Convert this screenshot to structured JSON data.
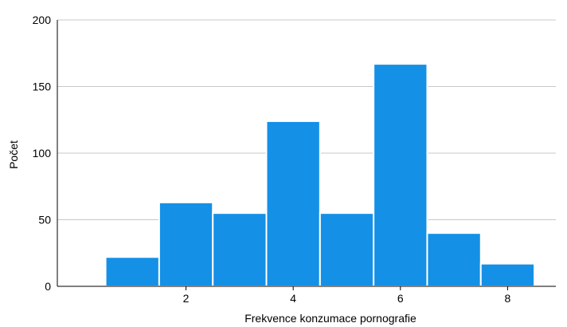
{
  "chart_data": {
    "type": "bar",
    "title": "",
    "xlabel": "Frekvence konzumace pornografie",
    "ylabel": "Počet",
    "bins": [
      {
        "x_start": 0.5,
        "x_end": 1.5,
        "count": 22
      },
      {
        "x_start": 1.5,
        "x_end": 2.5,
        "count": 63
      },
      {
        "x_start": 2.5,
        "x_end": 3.5,
        "count": 55
      },
      {
        "x_start": 3.5,
        "x_end": 4.5,
        "count": 124
      },
      {
        "x_start": 4.5,
        "x_end": 5.5,
        "count": 55
      },
      {
        "x_start": 5.5,
        "x_end": 6.5,
        "count": 167
      },
      {
        "x_start": 6.5,
        "x_end": 7.5,
        "count": 40
      },
      {
        "x_start": 7.5,
        "x_end": 8.5,
        "count": 17
      }
    ],
    "xticks": [
      "2",
      "4",
      "6",
      "8"
    ],
    "yticks": [
      "0",
      "50",
      "100",
      "150",
      "200"
    ],
    "xlim": [
      -0.4,
      8.9
    ],
    "ylim": [
      0,
      200
    ],
    "grid": true,
    "bar_color": "#1490e6"
  }
}
